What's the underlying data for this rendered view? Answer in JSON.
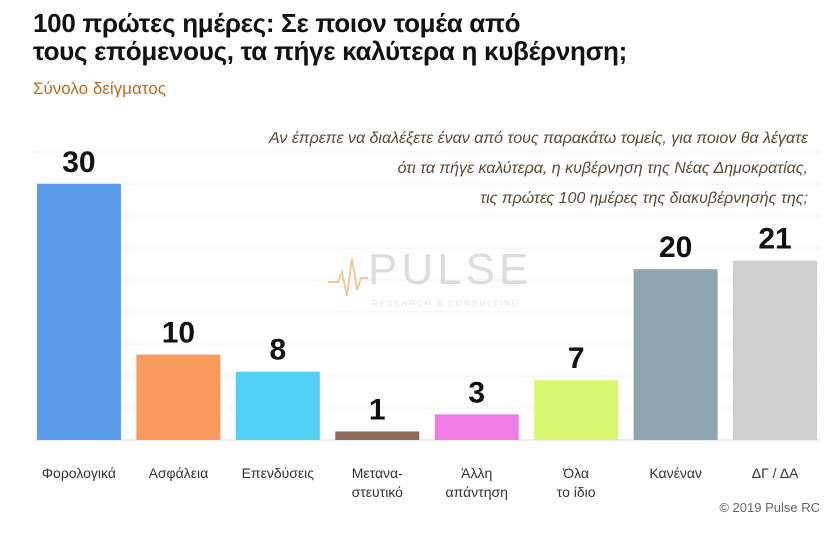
{
  "header": {
    "title_line1": "100 πρώτες ημέρες: Σε ποιον τομέα από",
    "title_line2": "τους επόμενους, τα πήγε καλύτερα η κυβέρνηση;",
    "subtitle": "Σύνολο δείγματος"
  },
  "question": {
    "line1": "Αν έπρεπε να διαλέξετε έναν από τους παρακάτω τομείς, για ποιον θα λέγατε",
    "line2": "ότι τα πήγε καλύτερα, η κυβέρνηση της Νέας Δημοκρατίας,",
    "line3": "τις πρώτες 100 ημέρες της διακυβέρνησής της;"
  },
  "watermark": {
    "brand": "PULSE",
    "tagline": "RESEARCH & CONSULTING"
  },
  "footer": {
    "copyright": "© 2019 Pulse RC"
  },
  "chart_data": {
    "type": "bar",
    "categories": [
      [
        "Φορολογικά"
      ],
      [
        "Ασφάλεια"
      ],
      [
        "Επενδύσεις"
      ],
      [
        "Μετανα-",
        "στευτικό"
      ],
      [
        "Άλλη",
        "απάντηση"
      ],
      [
        "Όλα",
        "το ίδιο"
      ],
      [
        "Κανέναν"
      ],
      [
        "ΔΓ / ΔΑ"
      ]
    ],
    "values": [
      30,
      10,
      8,
      1,
      3,
      7,
      20,
      21
    ],
    "colors": [
      "#5b9bea",
      "#f79a5c",
      "#52d1f7",
      "#8b6a59",
      "#ef7de4",
      "#d9f770",
      "#8fa6b1",
      "#cfcfcf"
    ],
    "ylim": [
      0,
      37
    ],
    "grid": true,
    "legend": "none",
    "data_labels": true
  }
}
